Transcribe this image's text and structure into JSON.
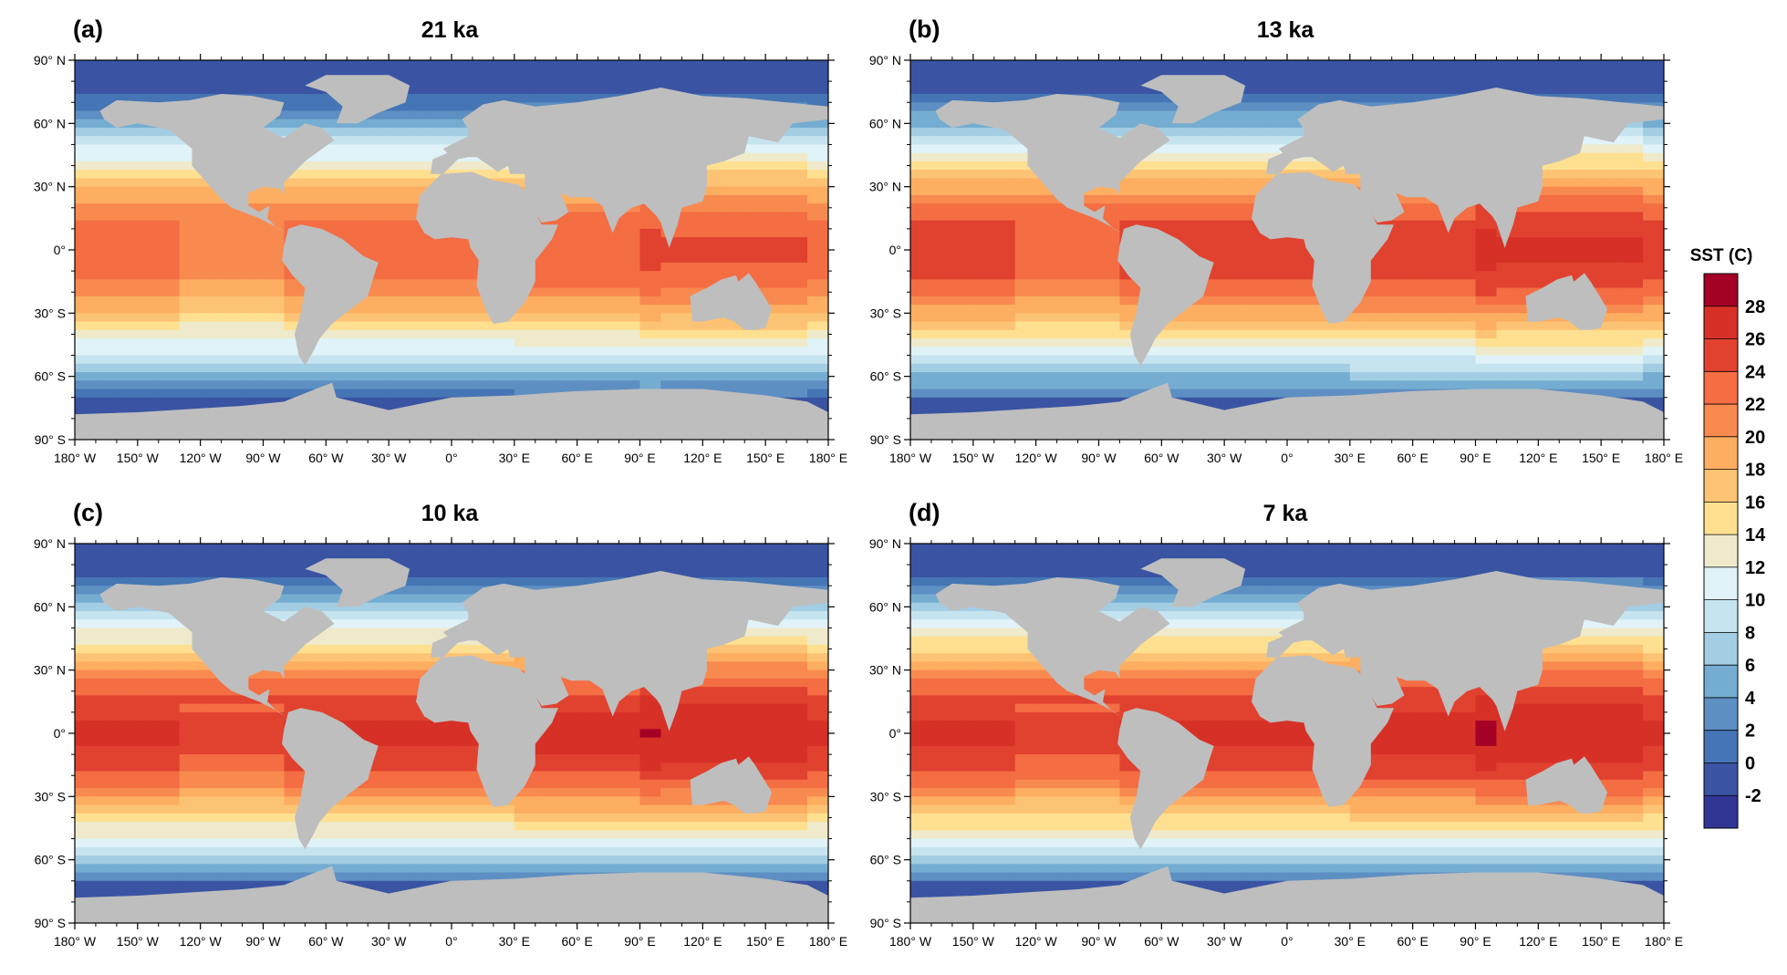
{
  "colorbar": {
    "title": "SST (C)",
    "levels": [
      -2,
      0,
      2,
      4,
      6,
      8,
      10,
      12,
      14,
      16,
      18,
      20,
      22,
      24,
      26,
      28
    ],
    "colors": [
      "#313695",
      "#3a54a3",
      "#4575b4",
      "#5d8fc3",
      "#74add1",
      "#a3cde3",
      "#c6e4ef",
      "#e0f3f8",
      "#efeacb",
      "#fee090",
      "#fdc374",
      "#fdae61",
      "#f88a50",
      "#f46d43",
      "#e0422f",
      "#d73027",
      "#a50026"
    ]
  },
  "land_color": "#bebebe",
  "axes": {
    "lat_labels": [
      "90° N",
      "60° N",
      "30° N",
      "0°",
      "30° S",
      "60° S",
      "90° S"
    ],
    "lat_values": [
      90,
      60,
      30,
      0,
      -30,
      -60,
      -90
    ],
    "lon_labels": [
      "180° W",
      "150° W",
      "120° W",
      "90° W",
      "60° W",
      "30° W",
      "0°",
      "30° E",
      "60° E",
      "90° E",
      "120° E",
      "150° E",
      "180° E"
    ],
    "lon_values": [
      -180,
      -150,
      -120,
      -90,
      -60,
      -30,
      0,
      30,
      60,
      90,
      120,
      150,
      180
    ]
  },
  "panels": [
    {
      "label": "(a)",
      "title": "21 ka"
    },
    {
      "label": "(b)",
      "title": "13 ka"
    },
    {
      "label": "(c)",
      "title": "10 ka"
    },
    {
      "label": "(d)",
      "title": "7 ka"
    }
  ]
}
